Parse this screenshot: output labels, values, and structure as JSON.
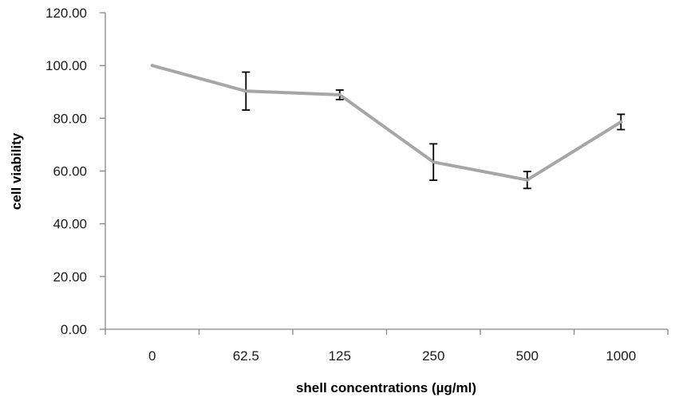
{
  "chart_data": {
    "type": "line",
    "title": "",
    "xlabel": "shell concentrations (µg/ml)",
    "ylabel": "cell viability",
    "categories": [
      "0",
      "62.5",
      "125",
      "250",
      "500",
      "1000"
    ],
    "series": [
      {
        "name": "cell viability",
        "values": [
          100.0,
          90.3,
          88.9,
          63.4,
          56.6,
          78.6
        ],
        "error": [
          null,
          7.2,
          1.8,
          6.9,
          3.2,
          2.9
        ],
        "color": "#a6a6a6"
      }
    ],
    "ylim": [
      0,
      120
    ],
    "yticks": [
      "0.00",
      "20.00",
      "40.00",
      "60.00",
      "80.00",
      "100.00",
      "120.00"
    ],
    "grid": false,
    "legend": "none",
    "axis_color": "#868686"
  }
}
